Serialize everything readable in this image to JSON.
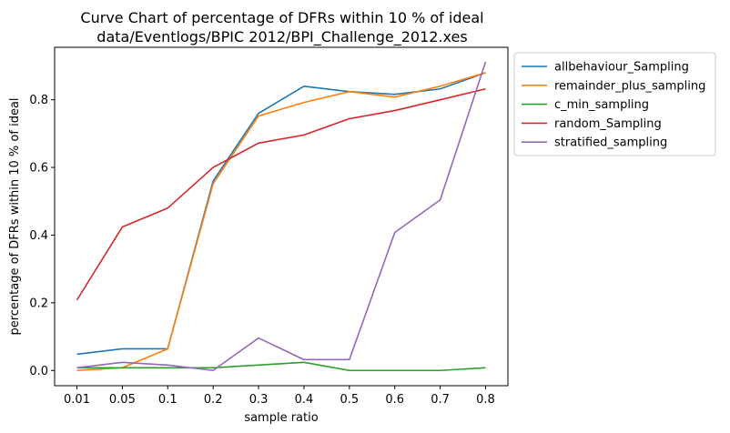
{
  "chart_data": {
    "type": "line",
    "title": "Curve Chart of percentage of DFRs within 10 % of ideal",
    "subtitle": "data/Eventlogs/BPIC 2012/BPI_Challenge_2012.xes",
    "xlabel": "sample ratio",
    "ylabel": "percentage of DFRs within 10 % of ideal",
    "categories": [
      "0.01",
      "0.05",
      "0.1",
      "0.2",
      "0.3",
      "0.4",
      "0.5",
      "0.6",
      "0.7",
      "0.8"
    ],
    "y_ticks": [
      "0.0",
      "0.2",
      "0.4",
      "0.6",
      "0.8"
    ],
    "y_tick_values": [
      0.0,
      0.2,
      0.4,
      0.6,
      0.8
    ],
    "ylim": [
      -0.045,
      0.955
    ],
    "grid": false,
    "legend_position": "outside-top-right",
    "series": [
      {
        "name": "allbehaviour_Sampling",
        "color": "#1f77b4",
        "values": [
          0.048,
          0.064,
          0.064,
          0.56,
          0.76,
          0.84,
          0.824,
          0.816,
          0.832,
          0.88
        ]
      },
      {
        "name": "remainder_plus_sampling",
        "color": "#ff7f0e",
        "values": [
          0.0,
          0.008,
          0.064,
          0.552,
          0.752,
          0.792,
          0.824,
          0.808,
          0.84,
          0.88
        ]
      },
      {
        "name": "c_min_sampling",
        "color": "#2ca02c",
        "values": [
          0.008,
          0.008,
          0.008,
          0.008,
          0.016,
          0.024,
          0.0,
          0.0,
          0.0,
          0.008
        ]
      },
      {
        "name": "random_Sampling",
        "color": "#d62728",
        "values": [
          0.208,
          0.424,
          0.48,
          0.6,
          0.672,
          0.696,
          0.744,
          0.768,
          0.8,
          0.832
        ]
      },
      {
        "name": "stratified_sampling",
        "color": "#9467bd",
        "values": [
          0.008,
          0.024,
          0.016,
          0.0,
          0.096,
          0.032,
          0.032,
          0.408,
          0.504,
          0.912
        ]
      }
    ]
  }
}
